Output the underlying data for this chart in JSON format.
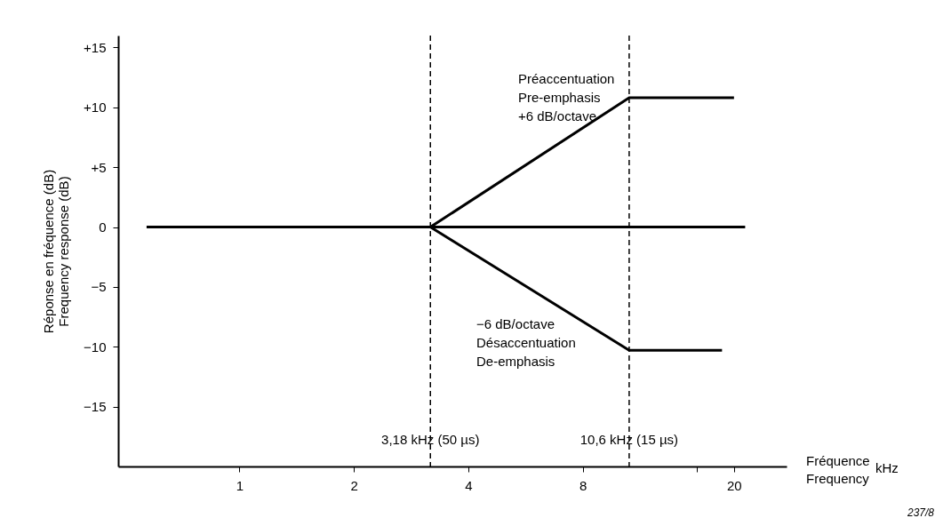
{
  "chart_data": {
    "type": "line",
    "ylabel": "Réponse en fréquence (dB)\nFrequency response (dB)",
    "xlabel": "Fréquence\nFrequency",
    "log": "x",
    "xlim": [
      0.48,
      27.5
    ],
    "xticks": [
      1,
      2,
      4,
      8,
      {
        "value": 16,
        "label": null
      },
      20
    ],
    "ylim": [
      -20,
      16
    ],
    "yticks": [
      {
        "value": 15,
        "label": "+15"
      },
      {
        "value": 10,
        "label": "+10"
      },
      {
        "value": 5,
        "label": "+5"
      },
      0,
      -5,
      -10,
      -15
    ],
    "grid": false,
    "series": [
      {
        "color": "#000000",
        "x": [
          0.57,
          21.4
        ],
        "values": [
          0,
          0
        ]
      },
      {
        "color": "#000000",
        "x": [
          3.18,
          10.6,
          20
        ],
        "values": [
          0,
          10.8,
          10.8
        ]
      },
      {
        "color": "#000000",
        "x": [
          3.18,
          10.6,
          18.6
        ],
        "values": [
          0,
          -10.3,
          -10.3
        ]
      }
    ],
    "ref_lines": [
      {
        "axis": "x",
        "value": 3.18,
        "label": "3,18 kHz (50 µs)",
        "color": "#000000",
        "line_style": "dashed"
      },
      {
        "axis": "x",
        "value": 10.6,
        "label": "10,6 kHz (15 µs)",
        "color": "#000000",
        "line_style": "dashed"
      }
    ],
    "annotations": [
      "Préaccentuation\nPre-emphasis\n+6 dB/octave",
      "−6 dB/octave\nDésaccentuation\nDe-emphasis",
      "kHz",
      "237/8"
    ]
  }
}
